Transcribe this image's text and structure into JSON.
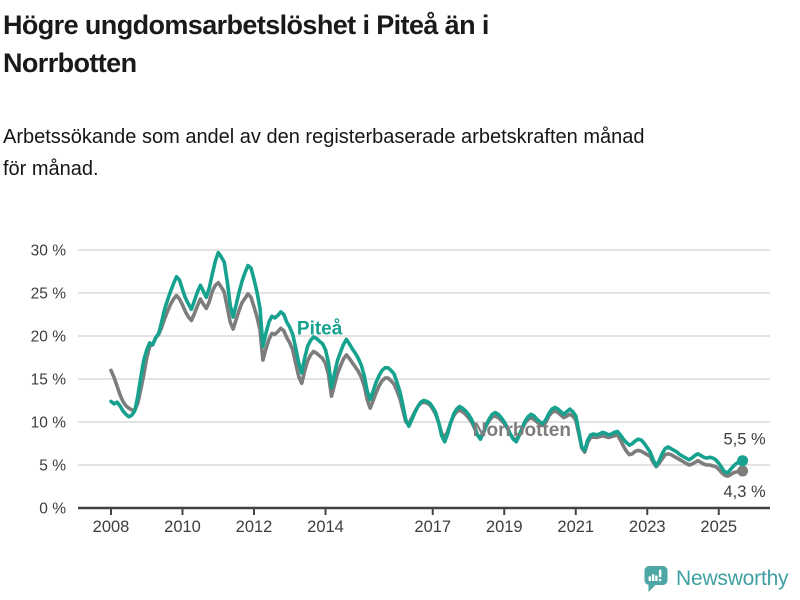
{
  "header": {
    "title_lines": [
      "Högre ungdomsarbetslöshet i Piteå än i",
      "Norrbotten"
    ],
    "subtitle_lines": [
      "Arbetssökande som andel av den registerbaserade arbetskraften månad",
      "för månad."
    ]
  },
  "footer": {
    "logo_text": "Newsworthy"
  },
  "colors": {
    "pitea": "#16a28f",
    "norrbotten": "#7d7d7d",
    "grid": "#dadada",
    "axis": "#444444",
    "tick_text": "#3d3d3d",
    "end_label_text": "#3d3d3d",
    "logo": "#4da7a4"
  },
  "chart_data": {
    "type": "line",
    "title": "Högre ungdomsarbetslöshet i Piteå än i Norrbotten",
    "subtitle": "Arbetssökande som andel av den registerbaserade arbetskraften månad för månad.",
    "x_unit": "month",
    "x_start_year": 2008,
    "x_end": "2025-09",
    "ylim": [
      0,
      30
    ],
    "grid": true,
    "y_ticks": [
      {
        "value": 0,
        "label": "0 %"
      },
      {
        "value": 5,
        "label": "5 %"
      },
      {
        "value": 10,
        "label": "10 %"
      },
      {
        "value": 15,
        "label": "15 %"
      },
      {
        "value": 20,
        "label": "20 %"
      },
      {
        "value": 25,
        "label": "25 %"
      },
      {
        "value": 30,
        "label": "30 %"
      }
    ],
    "x_ticks": [
      {
        "year": 2008,
        "label": "2008"
      },
      {
        "year": 2010,
        "label": "2010"
      },
      {
        "year": 2012,
        "label": "2012"
      },
      {
        "year": 2014,
        "label": "2014"
      },
      {
        "year": 2017,
        "label": "2017"
      },
      {
        "year": 2019,
        "label": "2019"
      },
      {
        "year": 2021,
        "label": "2021"
      },
      {
        "year": 2023,
        "label": "2023"
      },
      {
        "year": 2025,
        "label": "2025"
      }
    ],
    "series": [
      {
        "name": "Norrbotten",
        "color": "#7d7d7d",
        "end_label": "4,3 %",
        "end_label_side": "below",
        "inline_label": {
          "year": 2018.12,
          "value": 8.4
        },
        "values": [
          16.0,
          15.2,
          14.2,
          13.2,
          12.4,
          11.9,
          11.6,
          11.4,
          11.4,
          12.2,
          13.8,
          15.5,
          17.5,
          18.8,
          19.0,
          19.8,
          20.2,
          21.0,
          22.0,
          22.9,
          23.7,
          24.3,
          24.7,
          24.3,
          23.6,
          22.8,
          22.2,
          21.8,
          22.6,
          23.5,
          24.3,
          23.7,
          23.2,
          24.0,
          25.2,
          25.9,
          26.2,
          25.7,
          25.1,
          23.4,
          21.6,
          20.8,
          21.9,
          23.0,
          23.9,
          24.4,
          24.9,
          24.5,
          23.4,
          22.2,
          20.7,
          17.2,
          18.5,
          19.6,
          20.3,
          20.2,
          20.5,
          20.9,
          20.6,
          19.8,
          19.2,
          18.4,
          16.8,
          15.3,
          14.5,
          15.9,
          17.1,
          17.8,
          18.2,
          18.0,
          17.7,
          17.4,
          16.8,
          15.5,
          13.0,
          14.3,
          15.6,
          16.5,
          17.3,
          17.8,
          17.4,
          16.9,
          16.4,
          15.9,
          15.2,
          14.2,
          12.6,
          11.6,
          12.5,
          13.4,
          14.2,
          14.8,
          15.1,
          15.1,
          14.8,
          14.4,
          13.6,
          12.7,
          11.3,
          10.0,
          9.8,
          10.5,
          11.2,
          11.8,
          12.2,
          12.3,
          12.2,
          12.0,
          11.5,
          10.9,
          9.9,
          8.7,
          8.2,
          8.9,
          9.9,
          10.7,
          11.2,
          11.4,
          11.2,
          10.9,
          10.5,
          10.0,
          9.3,
          8.5,
          8.2,
          8.8,
          9.6,
          10.2,
          10.6,
          10.7,
          10.5,
          10.2,
          9.8,
          9.3,
          8.6,
          8.1,
          7.9,
          8.5,
          9.2,
          9.9,
          10.3,
          10.5,
          10.3,
          10.0,
          9.7,
          9.6,
          10.0,
          10.7,
          11.1,
          11.3,
          11.1,
          10.8,
          10.5,
          10.7,
          10.9,
          10.7,
          10.2,
          8.7,
          7.0,
          6.5,
          7.6,
          8.2,
          8.3,
          8.2,
          8.3,
          8.4,
          8.3,
          8.2,
          8.3,
          8.4,
          8.5,
          7.9,
          7.2,
          6.6,
          6.2,
          6.3,
          6.6,
          6.7,
          6.6,
          6.4,
          6.2,
          6.0,
          5.3,
          4.8,
          5.2,
          5.7,
          6.2,
          6.3,
          6.2,
          6.0,
          5.8,
          5.6,
          5.4,
          5.2,
          5.0,
          5.1,
          5.3,
          5.5,
          5.3,
          5.1,
          5.0,
          5.0,
          4.9,
          4.8,
          4.5,
          4.1,
          3.8,
          3.7,
          3.9,
          4.1,
          4.2,
          4.3,
          4.3
        ]
      },
      {
        "name": "Piteå",
        "color": "#16a28f",
        "end_label": "5,5 %",
        "end_label_side": "above",
        "inline_label": {
          "year": 2013.2,
          "value": 20.2
        },
        "values": [
          12.4,
          12.1,
          12.3,
          11.9,
          11.3,
          10.9,
          10.6,
          10.8,
          11.3,
          13.0,
          15.2,
          17.2,
          18.4,
          19.2,
          19.0,
          19.8,
          20.3,
          21.6,
          23.1,
          24.2,
          25.2,
          26.1,
          26.9,
          26.5,
          25.4,
          24.4,
          23.7,
          23.1,
          24.1,
          25.1,
          25.9,
          25.2,
          24.5,
          25.6,
          27.2,
          28.7,
          29.7,
          29.2,
          28.6,
          26.4,
          23.6,
          22.2,
          23.6,
          25.1,
          26.4,
          27.4,
          28.2,
          27.9,
          26.6,
          25.1,
          23.2,
          18.8,
          20.3,
          21.6,
          22.3,
          22.1,
          22.4,
          22.8,
          22.5,
          21.6,
          21.0,
          20.2,
          18.6,
          16.9,
          15.7,
          17.4,
          18.8,
          19.5,
          19.9,
          19.7,
          19.4,
          19.1,
          18.4,
          16.9,
          14.0,
          15.6,
          17.1,
          18.1,
          19.0,
          19.6,
          19.1,
          18.5,
          18.0,
          17.4,
          16.6,
          15.4,
          13.6,
          12.6,
          13.6,
          14.6,
          15.4,
          16.0,
          16.3,
          16.3,
          16.0,
          15.6,
          14.6,
          13.5,
          11.9,
          10.2,
          9.5,
          10.3,
          11.1,
          11.8,
          12.3,
          12.5,
          12.4,
          12.2,
          11.7,
          11.1,
          9.9,
          8.4,
          7.7,
          8.6,
          9.9,
          10.9,
          11.5,
          11.8,
          11.6,
          11.3,
          10.9,
          10.3,
          9.5,
          8.5,
          8.0,
          8.7,
          9.7,
          10.4,
          10.9,
          11.1,
          10.9,
          10.5,
          10.0,
          9.4,
          8.6,
          8.0,
          7.7,
          8.4,
          9.3,
          10.1,
          10.6,
          10.9,
          10.7,
          10.3,
          10.0,
          9.8,
          10.3,
          11.0,
          11.5,
          11.7,
          11.5,
          11.2,
          10.9,
          11.2,
          11.5,
          11.2,
          10.7,
          9.0,
          7.1,
          6.7,
          7.9,
          8.5,
          8.6,
          8.5,
          8.6,
          8.8,
          8.7,
          8.5,
          8.6,
          8.8,
          8.9,
          8.5,
          8.0,
          7.6,
          7.3,
          7.5,
          7.8,
          8.0,
          7.9,
          7.5,
          7.0,
          6.5,
          5.6,
          4.9,
          5.5,
          6.3,
          6.9,
          7.1,
          6.9,
          6.7,
          6.5,
          6.2,
          6.0,
          5.8,
          5.6,
          5.8,
          6.1,
          6.3,
          6.1,
          5.9,
          5.8,
          5.9,
          5.8,
          5.6,
          5.2,
          4.7,
          4.2,
          4.1,
          4.5,
          4.9,
          5.2,
          5.4,
          5.5
        ]
      }
    ]
  }
}
